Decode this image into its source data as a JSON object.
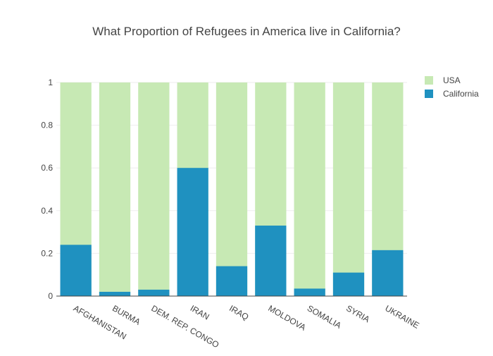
{
  "chart_data": {
    "type": "bar",
    "barmode": "overlay",
    "title": "What Proportion of Refugees in America live in California?",
    "categories": [
      "AFGHANISTAN",
      "BURMA",
      "DEM. REP. CONGO",
      "IRAN",
      "IRAQ",
      "MOLDOVA",
      "SOMALIA",
      "SYRIA",
      "UKRAINE"
    ],
    "series": [
      {
        "name": "USA",
        "color": "#c7e9b4",
        "values": [
          1,
          1,
          1,
          1,
          1,
          1,
          1,
          1,
          1
        ]
      },
      {
        "name": "California",
        "color": "#1f91c0",
        "values": [
          0.24,
          0.02,
          0.03,
          0.6,
          0.14,
          0.33,
          0.035,
          0.11,
          0.215
        ]
      }
    ],
    "yticks": [
      "0",
      "0.2",
      "0.4",
      "0.6",
      "0.8",
      "1"
    ],
    "ylim": [
      0,
      1
    ],
    "xlabel": "",
    "ylabel": "",
    "legend_position": "top-right",
    "grid": true
  }
}
